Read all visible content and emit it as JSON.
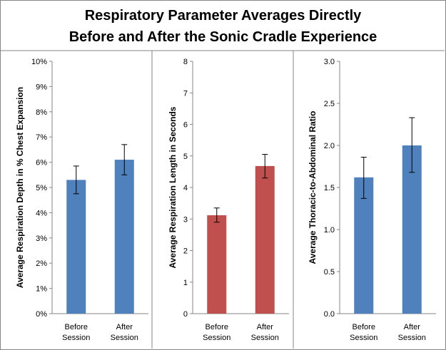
{
  "title_lines": [
    "Respiratory Parameter Averages Directly",
    "Before and After the Sonic Cradle Experience"
  ],
  "colors": {
    "blue": "#4F81BD",
    "red": "#C0504D",
    "border": "#868686",
    "axis": "#868686"
  },
  "chart_data": [
    {
      "type": "bar",
      "title": "",
      "ylabel": "Average Respiration Depth in % Chest Expansion",
      "categories": [
        [
          "Before",
          "Session"
        ],
        [
          "After",
          "Session"
        ]
      ],
      "values": [
        5.3,
        6.1
      ],
      "errors": [
        [
          4.75,
          5.85
        ],
        [
          5.5,
          6.7
        ]
      ],
      "ylim": [
        0,
        10
      ],
      "yticks": [
        "0%",
        "1%",
        "2%",
        "3%",
        "4%",
        "5%",
        "6%",
        "7%",
        "8%",
        "9%",
        "10%"
      ],
      "color": "#4F81BD"
    },
    {
      "type": "bar",
      "title": "",
      "ylabel": "Average Respiration Length in Seconds",
      "categories": [
        [
          "Before",
          "Session"
        ],
        [
          "After",
          "Session"
        ]
      ],
      "values": [
        3.12,
        4.68
      ],
      "errors": [
        [
          2.9,
          3.35
        ],
        [
          4.3,
          5.05
        ]
      ],
      "ylim": [
        0,
        8
      ],
      "yticks": [
        "0",
        "1",
        "2",
        "3",
        "4",
        "5",
        "6",
        "7",
        "8"
      ],
      "color": "#C0504D"
    },
    {
      "type": "bar",
      "title": "",
      "ylabel": "Average Thoracic-to-Abdominal Ratio",
      "categories": [
        [
          "Before",
          "Session"
        ],
        [
          "After",
          "Session"
        ]
      ],
      "values": [
        1.62,
        2.0
      ],
      "errors": [
        [
          1.37,
          1.86
        ],
        [
          1.68,
          2.33
        ]
      ],
      "ylim": [
        0,
        3
      ],
      "yticks": [
        "0.0",
        "0.5",
        "1.0",
        "1.5",
        "2.0",
        "2.5",
        "3.0"
      ],
      "color": "#4F81BD"
    }
  ]
}
